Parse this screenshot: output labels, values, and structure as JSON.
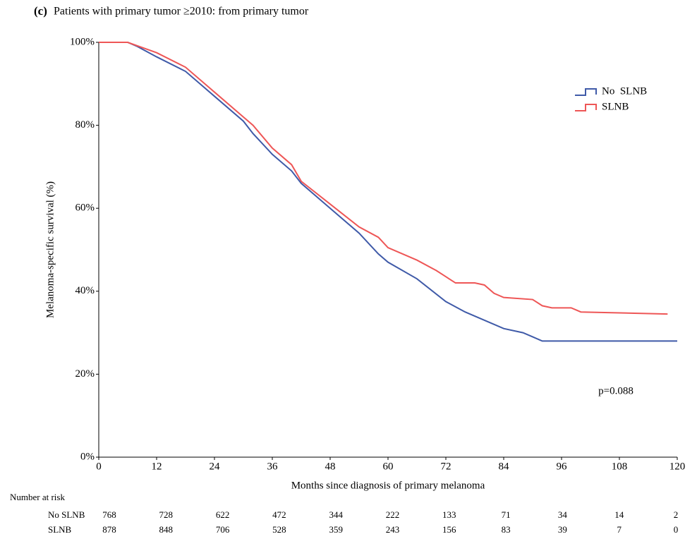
{
  "chart_data": {
    "type": "line",
    "panel_label": "(c)",
    "title": "Patients with primary tumor ≥2010: from primary tumor",
    "x_label": "Months since diagnosis of primary melanoma",
    "y_label": "Melanoma-specific survival (%)",
    "xlim": [
      0,
      120
    ],
    "xticks": [
      0,
      12,
      24,
      36,
      48,
      60,
      72,
      84,
      96,
      108,
      120
    ],
    "ylim": [
      0,
      100
    ],
    "yticks": [
      {
        "value": 0,
        "label": "0%"
      },
      {
        "value": 20,
        "label": "20%"
      },
      {
        "value": 40,
        "label": "40%"
      },
      {
        "value": 60,
        "label": "60%"
      },
      {
        "value": 80,
        "label": "80%"
      },
      {
        "value": 100,
        "label": "100%"
      }
    ],
    "legend": "upper right",
    "series": [
      {
        "name": "No  SLNB",
        "color": "#3f5aa8",
        "x": [
          0,
          6,
          8,
          12,
          18,
          24,
          30,
          32,
          36,
          40,
          42,
          48,
          54,
          58,
          60,
          66,
          72,
          76,
          78,
          84,
          88,
          90,
          92,
          120
        ],
        "values": [
          100,
          100,
          99,
          96.5,
          93,
          87,
          81,
          78,
          73,
          69,
          66,
          60,
          54,
          49,
          47,
          43,
          37.5,
          35,
          34,
          31,
          30,
          29,
          28,
          28
        ]
      },
      {
        "name": "SLNB",
        "color": "#ee5656",
        "x": [
          0,
          6,
          12,
          18,
          24,
          30,
          32,
          36,
          40,
          42,
          48,
          54,
          58,
          60,
          66,
          70,
          72,
          74,
          78,
          80,
          82,
          84,
          90,
          92,
          94,
          98,
          100,
          118
        ],
        "values": [
          100,
          100,
          97.5,
          94,
          88,
          82,
          80,
          74.5,
          70.5,
          66.5,
          61,
          55.5,
          53,
          50.5,
          47.5,
          45,
          43.5,
          42,
          42,
          41.5,
          39.5,
          38.5,
          38,
          36.5,
          36,
          36,
          35,
          34.5
        ]
      }
    ],
    "annotations": [
      {
        "text": "p=0.088"
      }
    ],
    "risk_table": {
      "title": "Number at risk",
      "rows": [
        {
          "label": "No SLNB",
          "values": [
            768,
            728,
            622,
            472,
            344,
            222,
            133,
            71,
            34,
            14,
            2
          ]
        },
        {
          "label": "SLNB",
          "values": [
            878,
            848,
            706,
            528,
            359,
            243,
            156,
            83,
            39,
            7,
            0
          ]
        }
      ]
    }
  }
}
